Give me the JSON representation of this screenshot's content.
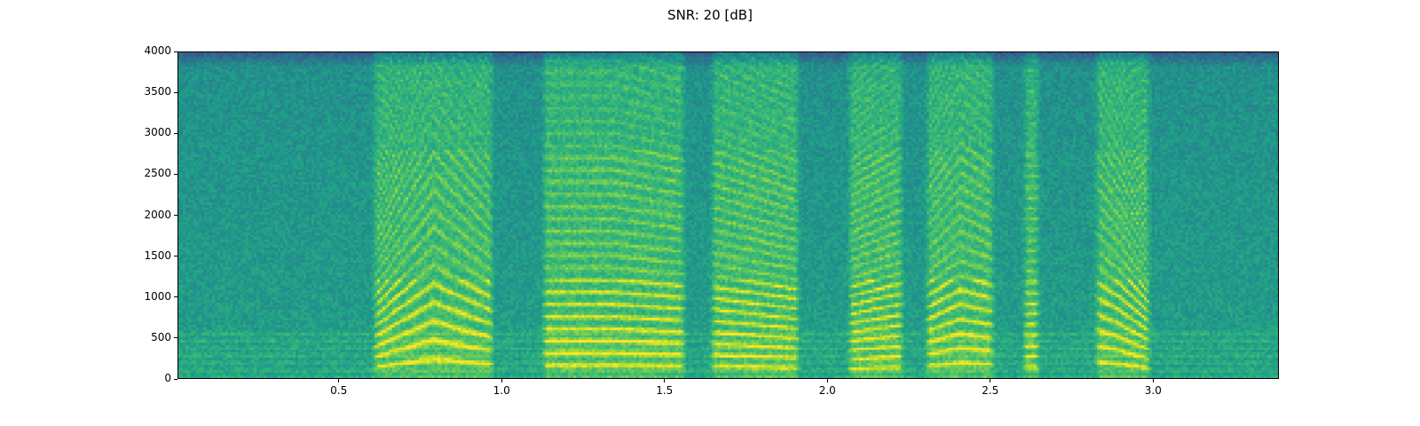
{
  "chart_data": {
    "type": "heatmap",
    "title": "SNR: 20 [dB]",
    "xlabel": "",
    "ylabel": "",
    "colormap": "viridis",
    "xlim": [
      0.005,
      3.386
    ],
    "ylim": [
      0,
      4000
    ],
    "xticks": [
      0.5,
      1.0,
      1.5,
      2.0,
      2.5,
      3.0
    ],
    "xtick_labels": [
      "0.5",
      "1.0",
      "1.5",
      "2.0",
      "2.5",
      "3.0"
    ],
    "yticks": [
      0,
      500,
      1000,
      1500,
      2000,
      2500,
      3000,
      3500,
      4000
    ],
    "ytick_labels": [
      "0",
      "500",
      "1000",
      "1500",
      "2000",
      "2500",
      "3000",
      "3500",
      "4000"
    ],
    "grid": false,
    "voiced_segments": [
      {
        "start": 0.6,
        "end": 0.98,
        "f0_start": 120,
        "f0_peak": 230,
        "f0_end": 160
      },
      {
        "start": 1.12,
        "end": 1.57,
        "f0_start": 150,
        "f0_peak": 150,
        "f0_end": 140
      },
      {
        "start": 1.64,
        "end": 1.92,
        "f0_start": 140,
        "f0_peak": 130,
        "f0_end": 120
      },
      {
        "start": 2.06,
        "end": 2.24,
        "f0_start": 110,
        "f0_peak": 120,
        "f0_end": 130
      },
      {
        "start": 2.3,
        "end": 2.52,
        "f0_start": 140,
        "f0_peak": 180,
        "f0_end": 160
      },
      {
        "start": 2.6,
        "end": 2.66,
        "f0_start": 130,
        "f0_peak": 130,
        "f0_end": 130
      },
      {
        "start": 2.82,
        "end": 3.0,
        "f0_start": 200,
        "f0_peak": 160,
        "f0_end": 110
      }
    ]
  }
}
